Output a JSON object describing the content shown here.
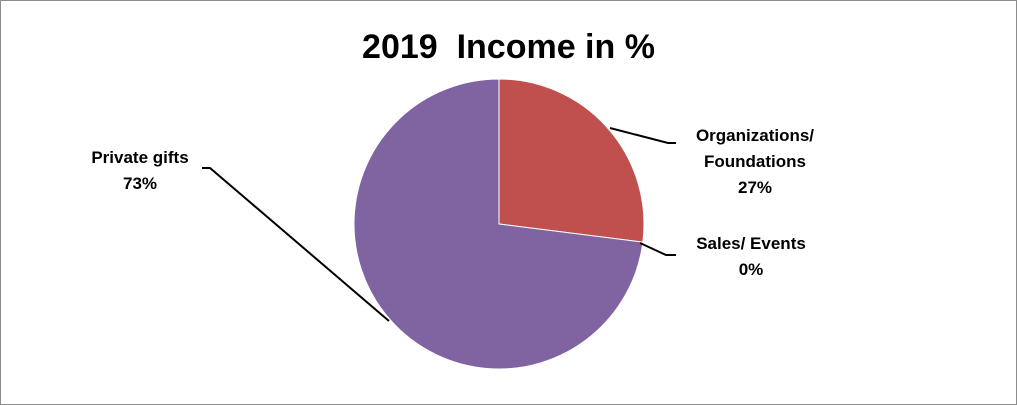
{
  "chart_data": {
    "type": "pie",
    "title": "2019  Income in %",
    "slices": [
      {
        "label": "Organizations/ Foundations",
        "label_lines": [
          "Organizations/",
          "Foundations"
        ],
        "value": 27,
        "value_label": "27%",
        "color": "#c0504d"
      },
      {
        "label": "Sales/ Events",
        "label_lines": [
          "Sales/ Events"
        ],
        "value": 0,
        "value_label": "0%",
        "color": "#9bbb59"
      },
      {
        "label": "Private gifts",
        "label_lines": [
          "Private gifts"
        ],
        "value": 73,
        "value_label": "73%",
        "color": "#8064a2"
      }
    ],
    "start_angle": "12 o'clock",
    "direction": "clockwise",
    "legend": "none",
    "data_labels": "outside with leader lines"
  }
}
